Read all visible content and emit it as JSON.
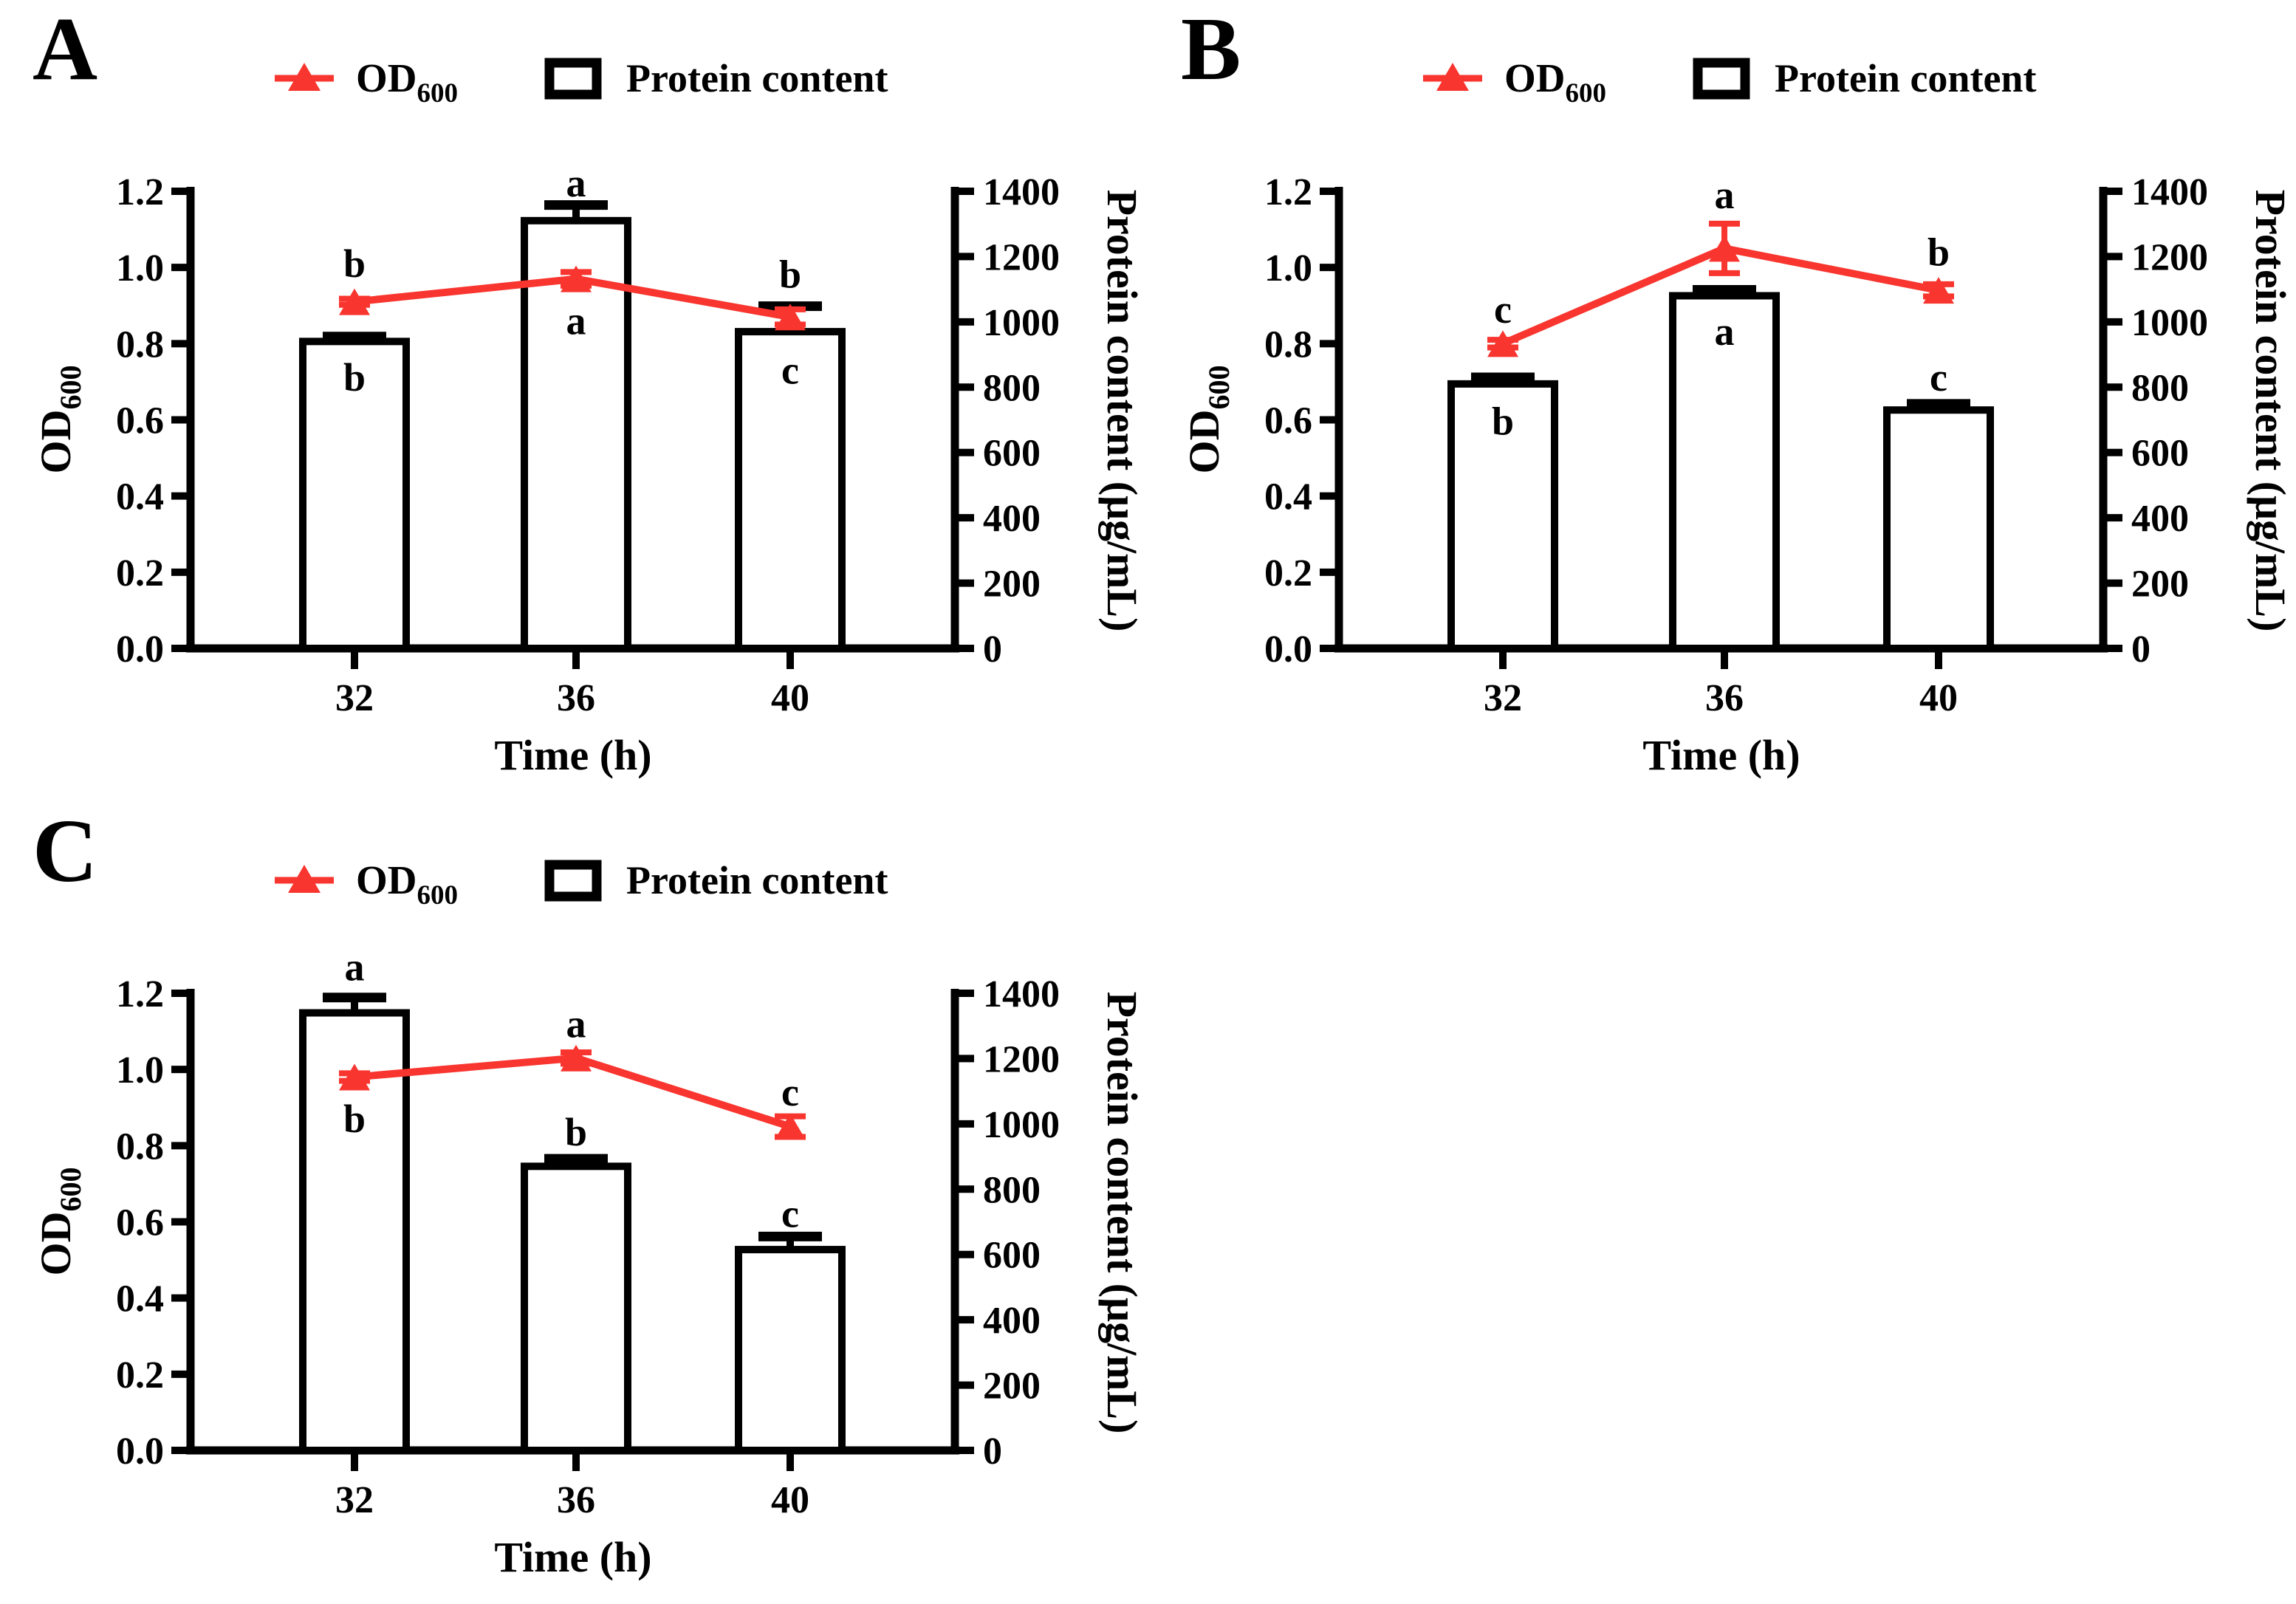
{
  "figure": {
    "background_color": "#ffffff",
    "accent_red": "#f9352f",
    "axis_black": "#000000",
    "bar_fill": "#ffffff"
  },
  "legend": {
    "od_label_main": "OD",
    "od_label_sub": "600",
    "protein_label": "Protein content"
  },
  "axes": {
    "left_label_main": "OD",
    "left_label_sub": "600",
    "right_label": "Protein content (μg/mL)",
    "x_label": "Time (h)",
    "left_ticks": [
      "0.0",
      "0.2",
      "0.4",
      "0.6",
      "0.8",
      "1.0",
      "1.2"
    ],
    "right_ticks": [
      "0",
      "200",
      "400",
      "600",
      "800",
      "1000",
      "1200",
      "1400"
    ],
    "left_range": [
      0,
      1.2
    ],
    "right_range": [
      0,
      1400
    ]
  },
  "chart_data": [
    {
      "panel_label": "A",
      "type": "bar+line-dual-axis",
      "categories": [
        "32",
        "36",
        "40"
      ],
      "x_label": "Time (h)",
      "legend_entries": [
        "OD600",
        "Protein content"
      ],
      "legend_position": "top",
      "grid": false,
      "left_axis": {
        "label": "OD600",
        "range": [
          0,
          1.2
        ],
        "tick_step": 0.2
      },
      "right_axis": {
        "label": "Protein content (μg/mL)",
        "range": [
          0,
          1400
        ],
        "tick_step": 200
      },
      "series": [
        {
          "name": "OD600",
          "type": "line",
          "axis": "left",
          "marker": "triangle",
          "values": [
            0.91,
            0.97,
            0.87
          ],
          "errors": [
            0.008,
            0.018,
            0.02
          ],
          "sig_letters": [
            "b",
            "a",
            "c"
          ],
          "sig_letter_y": [
            1.01,
            0.86,
            0.73
          ]
        },
        {
          "name": "Protein content",
          "type": "bar",
          "axis": "right",
          "values": [
            940,
            1310,
            970
          ],
          "errors": [
            15,
            48,
            78
          ],
          "sig_letters": [
            "b",
            "a",
            "b"
          ],
          "sig_letter_y": [
            830,
            1425,
            1145
          ]
        }
      ]
    },
    {
      "panel_label": "B",
      "type": "bar+line-dual-axis",
      "categories": [
        "32",
        "36",
        "40"
      ],
      "x_label": "Time (h)",
      "legend_entries": [
        "OD600",
        "Protein content"
      ],
      "legend_position": "top",
      "grid": false,
      "left_axis": {
        "label": "OD600",
        "range": [
          0,
          1.2
        ],
        "tick_step": 0.2
      },
      "right_axis": {
        "label": "Protein content (μg/mL)",
        "range": [
          0,
          1400
        ],
        "tick_step": 200
      },
      "series": [
        {
          "name": "OD600",
          "type": "line",
          "axis": "left",
          "marker": "triangle",
          "values": [
            0.8,
            1.05,
            0.94
          ],
          "errors": [
            0.01,
            0.065,
            0.016
          ],
          "sig_letters": [
            "c",
            "a",
            "b"
          ],
          "sig_letter_y": [
            0.89,
            1.19,
            1.04
          ]
        },
        {
          "name": "Protein content",
          "type": "bar",
          "axis": "right",
          "values": [
            810,
            1080,
            730
          ],
          "errors": [
            20,
            18,
            19
          ],
          "sig_letters": [
            "b",
            "a",
            "c"
          ],
          "sig_letter_y": [
            695,
            970,
            830
          ]
        }
      ]
    },
    {
      "panel_label": "C",
      "type": "bar+line-dual-axis",
      "categories": [
        "32",
        "36",
        "40"
      ],
      "x_label": "Time (h)",
      "legend_entries": [
        "OD600",
        "Protein content"
      ],
      "legend_position": "top",
      "grid": false,
      "left_axis": {
        "label": "OD600",
        "range": [
          0,
          1.2
        ],
        "tick_step": 0.2
      },
      "right_axis": {
        "label": "Protein content (μg/mL)",
        "range": [
          0,
          1400
        ],
        "tick_step": 200
      },
      "series": [
        {
          "name": "OD600",
          "type": "line",
          "axis": "left",
          "marker": "triangle",
          "values": [
            0.98,
            1.03,
            0.85
          ],
          "errors": [
            0.01,
            0.015,
            0.027
          ],
          "sig_letters": [
            "b",
            "a",
            "c"
          ],
          "sig_letter_y": [
            0.87,
            1.12,
            0.94
          ]
        },
        {
          "name": "Protein content",
          "type": "bar",
          "axis": "right",
          "values": [
            1340,
            870,
            615
          ],
          "errors": [
            47,
            23,
            40
          ],
          "sig_letters": [
            "a",
            "b",
            "c"
          ],
          "sig_letter_y": [
            1480,
            975,
            725
          ]
        }
      ]
    }
  ]
}
